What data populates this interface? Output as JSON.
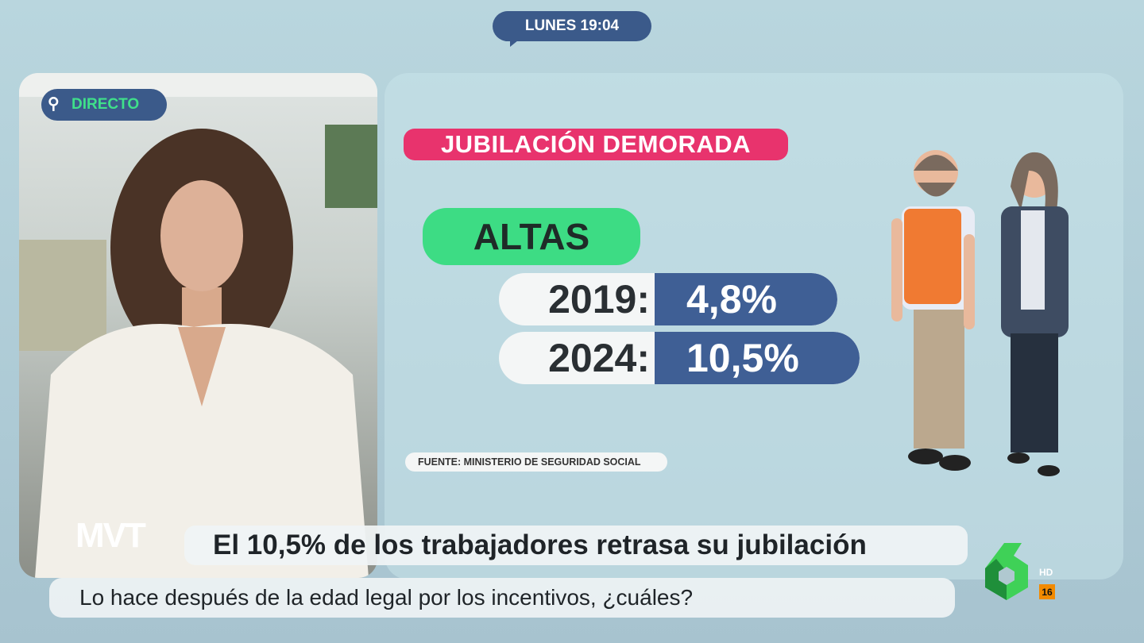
{
  "header": {
    "time_label": "LUNES 19:04"
  },
  "video": {
    "live_badge": "DIRECTO",
    "live_icon": "search-icon"
  },
  "graphic": {
    "title": "JUBILACIÓN DEMORADA",
    "section": "ALTAS",
    "rows": [
      {
        "year": "2019:",
        "value": "4,8%"
      },
      {
        "year": "2024:",
        "value": "10,5%"
      }
    ],
    "source": "FUENTE: MINISTERIO DE SEGURIDAD SOCIAL",
    "colors": {
      "title": "#e8336d",
      "section": "#3ddc84",
      "value": "#3f5f95"
    }
  },
  "lower_third": {
    "show_logo": "MVT",
    "headline": "El 10,5% de los trabajadores retrasa su jubilación",
    "subtitle": "Lo hace después de la edad legal por los incentivos, ¿cuáles?"
  },
  "channel": {
    "logo": "laSexta 6",
    "hd": "HD",
    "rating": "16"
  }
}
